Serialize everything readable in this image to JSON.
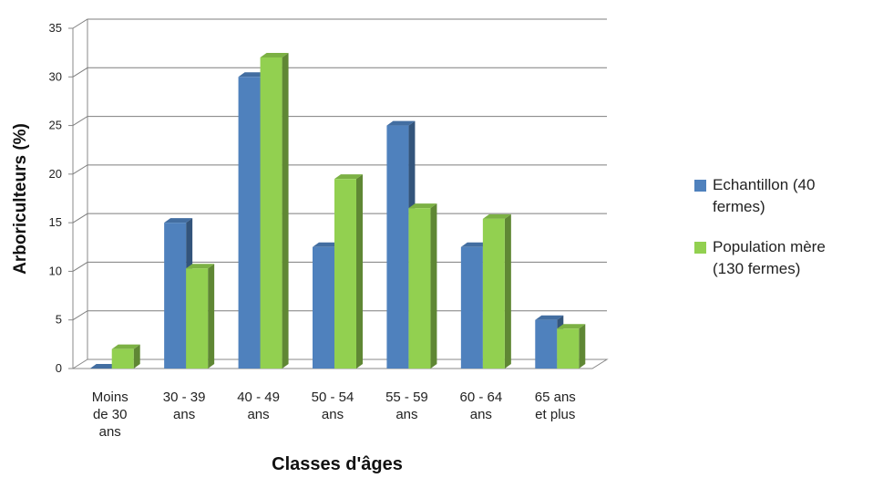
{
  "chart_data": {
    "type": "bar",
    "title": "",
    "xlabel": "Classes d'âges",
    "ylabel": "Arboriculteurs (%)",
    "ylim": [
      0,
      35
    ],
    "yticks": [
      0,
      5,
      10,
      15,
      20,
      25,
      30,
      35
    ],
    "grid": true,
    "legend_position": "right",
    "categories": [
      [
        "Moins",
        "de 30",
        "ans"
      ],
      [
        "30 - 39",
        "ans"
      ],
      [
        "40 - 49",
        "ans"
      ],
      [
        "50 - 54",
        "ans"
      ],
      [
        "55 - 59",
        "ans"
      ],
      [
        "60 - 64",
        "ans"
      ],
      [
        "65 ans",
        "et plus"
      ]
    ],
    "series": [
      {
        "name": "Echantillon (40 fermes)",
        "legend_lines": [
          "Echantillon (40",
          "fermes)"
        ],
        "color": "#4F81BD",
        "values": [
          0,
          15,
          30,
          12.5,
          25,
          12.5,
          5
        ]
      },
      {
        "name": "Population mère (130 fermes)",
        "legend_lines": [
          "Population mère",
          "(130 fermes)"
        ],
        "color": "#92D050",
        "values": [
          2,
          10.3,
          32,
          19.5,
          16.5,
          15.4,
          4.1
        ]
      }
    ]
  }
}
